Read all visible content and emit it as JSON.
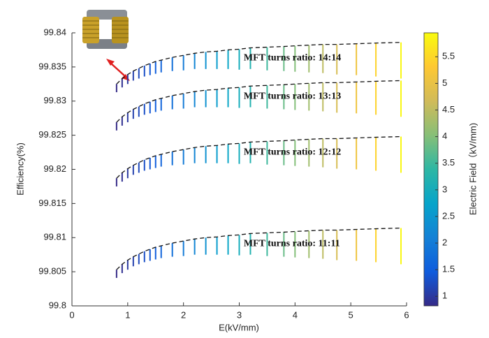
{
  "chart_data": {
    "type": "vertical-segments",
    "xlabel": "E(kV/mm)",
    "ylabel": "Efficiency(%)",
    "colorbar_label": "Electric Field（kV/mm)",
    "xlim": [
      0,
      6
    ],
    "xticks": [
      0,
      1,
      2,
      3,
      4,
      5,
      6
    ],
    "ylim": [
      99.8,
      99.84
    ],
    "yticks": [
      99.8,
      99.805,
      99.81,
      99.815,
      99.82,
      99.825,
      99.83,
      99.835,
      99.84
    ],
    "clim": [
      0.82,
      5.95
    ],
    "cticks": [
      1,
      1.5,
      2,
      2.5,
      3,
      3.5,
      4,
      4.5,
      5,
      5.5
    ],
    "colormap": [
      "#352a87",
      "#0f5cdd",
      "#1481d6",
      "#06a4ca",
      "#2eb7a4",
      "#87bf77",
      "#d1bb59",
      "#fec832",
      "#f9fb0e"
    ],
    "x": [
      0.8,
      0.9,
      1.0,
      1.1,
      1.2,
      1.3,
      1.4,
      1.5,
      1.6,
      1.8,
      2.0,
      2.2,
      2.4,
      2.6,
      2.8,
      3.0,
      3.2,
      3.5,
      3.8,
      4.0,
      4.25,
      4.5,
      4.75,
      5.1,
      5.45,
      5.9
    ],
    "series": [
      {
        "name": "MFT turns ratio: 14:14",
        "highs": [
          99.8325,
          99.8333,
          99.8339,
          99.8344,
          99.8348,
          99.8352,
          99.8355,
          99.8358,
          99.836,
          99.8364,
          99.8367,
          99.837,
          99.8372,
          99.8373,
          99.8375,
          99.8376,
          99.8378,
          99.8379,
          99.838,
          99.8381,
          99.8382,
          99.8383,
          99.8383,
          99.8384,
          99.8385,
          99.8386
        ],
        "lows": [
          99.8313,
          99.832,
          99.8325,
          99.833,
          99.8333,
          99.8336,
          99.8338,
          99.834,
          99.8342,
          99.8344,
          99.8345,
          99.8347,
          99.8347,
          99.8347,
          99.8347,
          99.8346,
          99.8347,
          99.8345,
          99.8344,
          99.8343,
          99.8342,
          99.8341,
          99.8339,
          99.8338,
          99.8336,
          99.8333
        ]
      },
      {
        "name": "MFT turns ratio: 13:13",
        "highs": [
          99.8269,
          99.8277,
          99.8283,
          99.8288,
          99.8292,
          99.8296,
          99.8299,
          99.8302,
          99.8304,
          99.8308,
          99.8311,
          99.8314,
          99.8316,
          99.8317,
          99.8319,
          99.832,
          99.8322,
          99.8323,
          99.8324,
          99.8325,
          99.8326,
          99.8327,
          99.8327,
          99.8328,
          99.8329,
          99.833
        ],
        "lows": [
          99.8257,
          99.8264,
          99.8269,
          99.8274,
          99.8277,
          99.828,
          99.8282,
          99.8284,
          99.8286,
          99.8288,
          99.8289,
          99.8291,
          99.8291,
          99.8291,
          99.8291,
          99.829,
          99.8291,
          99.8289,
          99.8288,
          99.8287,
          99.8286,
          99.8285,
          99.8283,
          99.8282,
          99.828,
          99.8277
        ]
      },
      {
        "name": "MFT turns ratio: 12:12",
        "highs": [
          99.8187,
          99.8195,
          99.8201,
          99.8206,
          99.821,
          99.8214,
          99.8217,
          99.822,
          99.8222,
          99.8226,
          99.8229,
          99.8232,
          99.8234,
          99.8235,
          99.8237,
          99.8238,
          99.824,
          99.8241,
          99.8242,
          99.8243,
          99.8244,
          99.8245,
          99.8245,
          99.8246,
          99.8247,
          99.8248
        ],
        "lows": [
          99.8175,
          99.8182,
          99.8187,
          99.8192,
          99.8195,
          99.8198,
          99.82,
          99.8202,
          99.8204,
          99.8206,
          99.8207,
          99.8209,
          99.8209,
          99.8209,
          99.8209,
          99.8208,
          99.8209,
          99.8207,
          99.8206,
          99.8205,
          99.8204,
          99.8203,
          99.8201,
          99.82,
          99.8198,
          99.8195
        ]
      },
      {
        "name": "MFT turns ratio: 11:11",
        "highs": [
          99.8053,
          99.8061,
          99.8067,
          99.8072,
          99.8076,
          99.808,
          99.8083,
          99.8086,
          99.8088,
          99.8092,
          99.8095,
          99.8098,
          99.81,
          99.8101,
          99.8103,
          99.8104,
          99.8106,
          99.8107,
          99.8108,
          99.8109,
          99.811,
          99.8111,
          99.8111,
          99.8112,
          99.8113,
          99.8114
        ],
        "lows": [
          99.8041,
          99.8048,
          99.8053,
          99.8058,
          99.8061,
          99.8064,
          99.8066,
          99.8068,
          99.807,
          99.8072,
          99.8073,
          99.8075,
          99.8075,
          99.8075,
          99.8075,
          99.8074,
          99.8075,
          99.8073,
          99.8072,
          99.8071,
          99.807,
          99.8069,
          99.8067,
          99.8066,
          99.8064,
          99.8061
        ]
      }
    ]
  }
}
